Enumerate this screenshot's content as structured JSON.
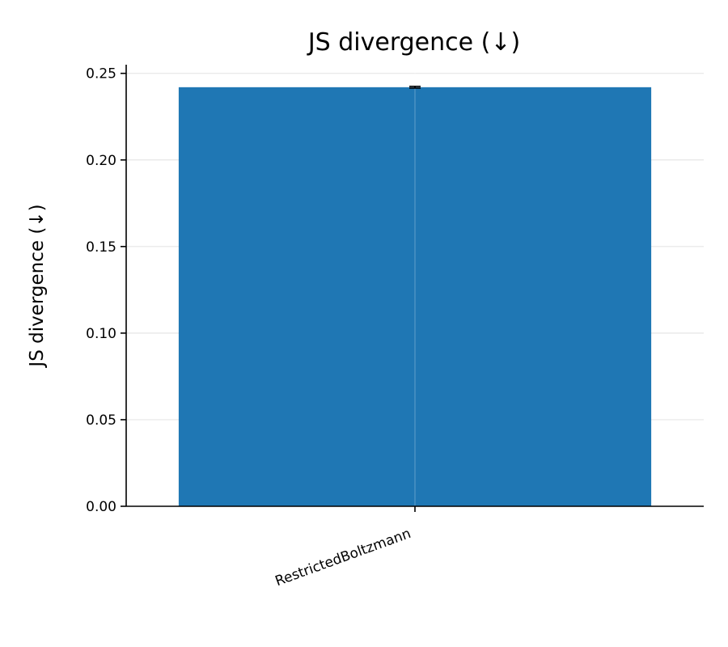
{
  "chart_data": {
    "type": "bar",
    "title": "JS divergence (↓)",
    "xlabel": "",
    "ylabel": "JS divergence (↓)",
    "categories": [
      "RestrictedBoltzmann"
    ],
    "series": [
      {
        "values": [
          0.242
        ],
        "errors": [
          0.0005
        ]
      }
    ],
    "ylim": [
      0,
      0.255
    ],
    "yticks": [
      0.0,
      0.05,
      0.1,
      0.15,
      0.2,
      0.25
    ],
    "ytick_labels": [
      "0.00",
      "0.05",
      "0.10",
      "0.15",
      "0.20",
      "0.25"
    ],
    "grid": true,
    "colors": {
      "bar": "#1f77b4",
      "error": "#000000"
    }
  }
}
